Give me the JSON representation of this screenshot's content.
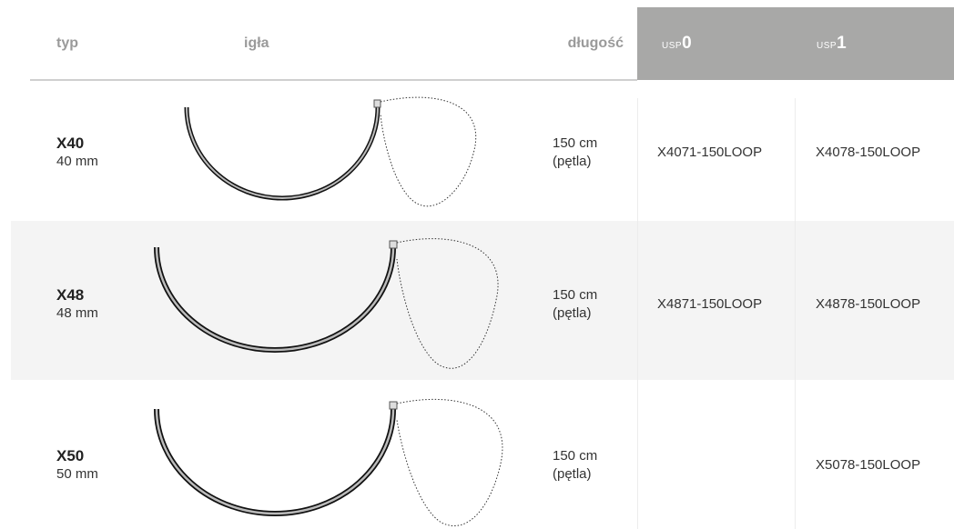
{
  "header": {
    "type": "typ",
    "needle": "igła",
    "length": "długość",
    "usp": [
      {
        "prefix": "USP",
        "value": "0"
      },
      {
        "prefix": "USP",
        "value": "1"
      }
    ]
  },
  "rows": [
    {
      "code": "X40",
      "size": "40 mm",
      "length": "150 cm",
      "length_note": "(pętla)",
      "usp": [
        "X4071-150LOOP",
        "X4078-150LOOP"
      ]
    },
    {
      "code": "X48",
      "size": "48 mm",
      "length": "150 cm",
      "length_note": "(pętla)",
      "usp": [
        "X4871-150LOOP",
        "X4878-150LOOP"
      ]
    },
    {
      "code": "X50",
      "size": "50 mm",
      "length": "150 cm",
      "length_note": "(pętla)",
      "usp": [
        null,
        "X5078-150LOOP"
      ]
    }
  ]
}
